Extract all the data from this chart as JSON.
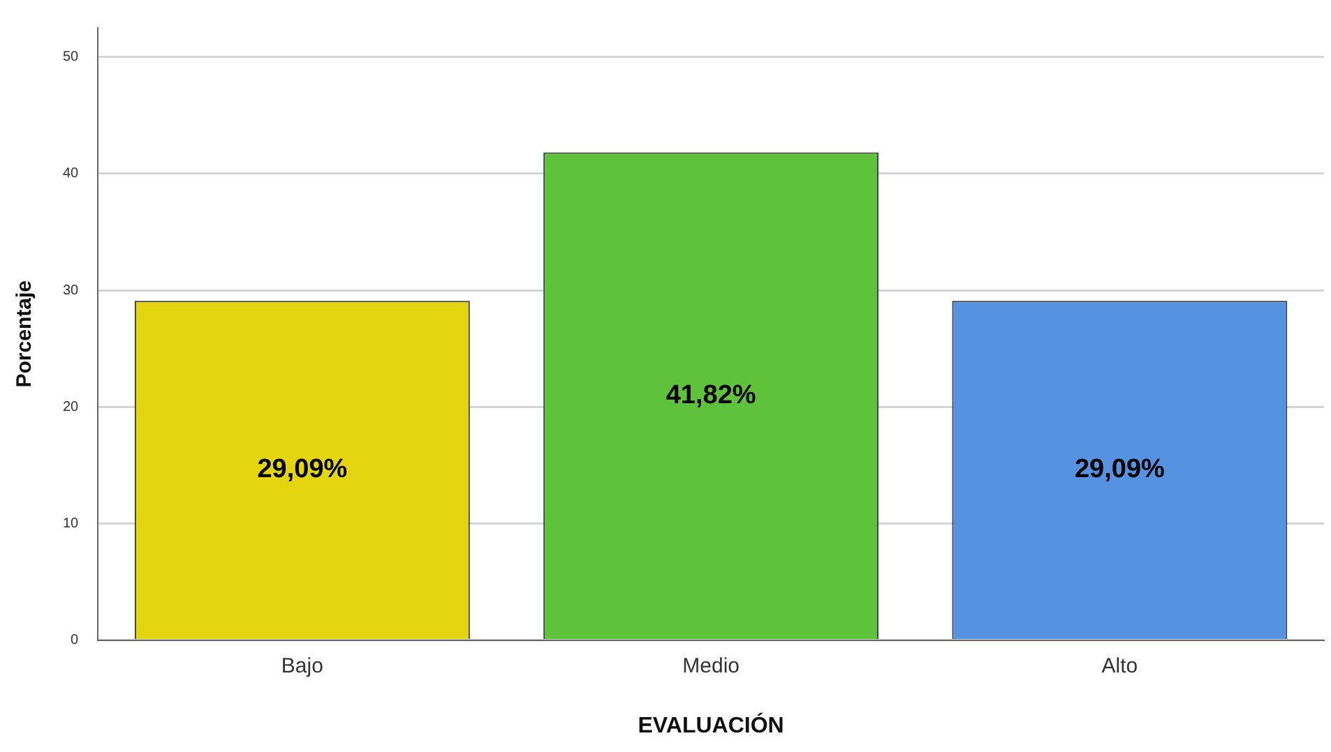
{
  "chart_data": {
    "type": "bar",
    "xlabel": "EVALUACIÓN",
    "ylabel": "Porcentaje",
    "categories": [
      "Bajo",
      "Medio",
      "Alto"
    ],
    "values": [
      29.09,
      41.82,
      29.09
    ],
    "colors": [
      "#e3d50f",
      "#5ec23a",
      "#5592e0"
    ],
    "value_labels": [
      "29,09%",
      "41,82%",
      "29,09%"
    ],
    "ylim": [
      0,
      52.5
    ],
    "yticks": [
      0,
      10,
      20,
      30,
      40,
      50
    ],
    "grid": "y",
    "legend": false
  }
}
